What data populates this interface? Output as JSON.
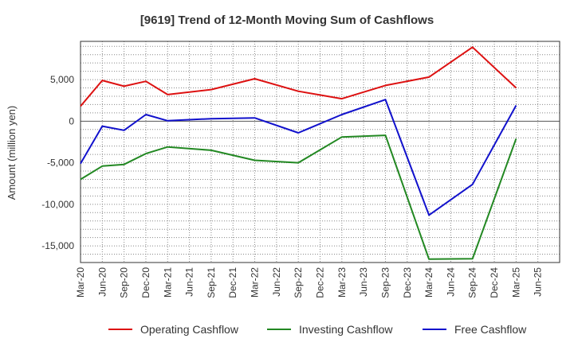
{
  "chart_data": {
    "type": "line",
    "title": "[9619]  Trend of 12-Month Moving Sum of Cashflows",
    "xlabel": "",
    "ylabel": "Amount (million yen)",
    "x_ticks": [
      "Mar-20",
      "Jun-20",
      "Sep-20",
      "Dec-20",
      "Mar-21",
      "Jun-21",
      "Sep-21",
      "Dec-21",
      "Mar-22",
      "Jun-22",
      "Sep-22",
      "Dec-22",
      "Mar-23",
      "Jun-23",
      "Sep-23",
      "Dec-23",
      "Mar-24",
      "Jun-24",
      "Sep-24",
      "Dec-24",
      "Mar-25",
      "Jun-25"
    ],
    "y_ticks": [
      5000,
      0,
      -5000,
      -10000,
      -15000
    ],
    "y_tick_labels": [
      "5,000",
      "0",
      "-5,000",
      "-10,000",
      "-15,000"
    ],
    "ylim": [
      -17000,
      9600
    ],
    "grid": true,
    "legend_position": "bottom",
    "series": [
      {
        "name": "Operating Cashflow",
        "color": "#dd1111",
        "x": [
          "Mar-20",
          "Jun-20",
          "Sep-20",
          "Dec-20",
          "Mar-21",
          "Sep-21",
          "Mar-22",
          "Sep-22",
          "Mar-23",
          "Sep-23",
          "Mar-24",
          "Sep-24",
          "Mar-25"
        ],
        "values": [
          1800,
          4900,
          4200,
          4800,
          3200,
          3800,
          5100,
          3600,
          2700,
          4300,
          5300,
          8900,
          4000
        ]
      },
      {
        "name": "Investing Cashflow",
        "color": "#228822",
        "x": [
          "Mar-20",
          "Jun-20",
          "Sep-20",
          "Dec-20",
          "Mar-21",
          "Sep-21",
          "Mar-22",
          "Sep-22",
          "Mar-23",
          "Sep-23",
          "Mar-24",
          "Sep-24",
          "Mar-25"
        ],
        "values": [
          -7000,
          -5400,
          -5200,
          -3900,
          -3100,
          -3500,
          -4700,
          -5000,
          -1900,
          -1700,
          -16600,
          -16550,
          -2100
        ]
      },
      {
        "name": "Free Cashflow",
        "color": "#1111cc",
        "x": [
          "Mar-20",
          "Jun-20",
          "Sep-20",
          "Dec-20",
          "Mar-21",
          "Sep-21",
          "Mar-22",
          "Sep-22",
          "Mar-23",
          "Sep-23",
          "Mar-24",
          "Sep-24",
          "Mar-25"
        ],
        "values": [
          -5100,
          -600,
          -1100,
          800,
          50,
          300,
          400,
          -1400,
          800,
          2600,
          -11300,
          -7600,
          1900
        ]
      }
    ]
  }
}
